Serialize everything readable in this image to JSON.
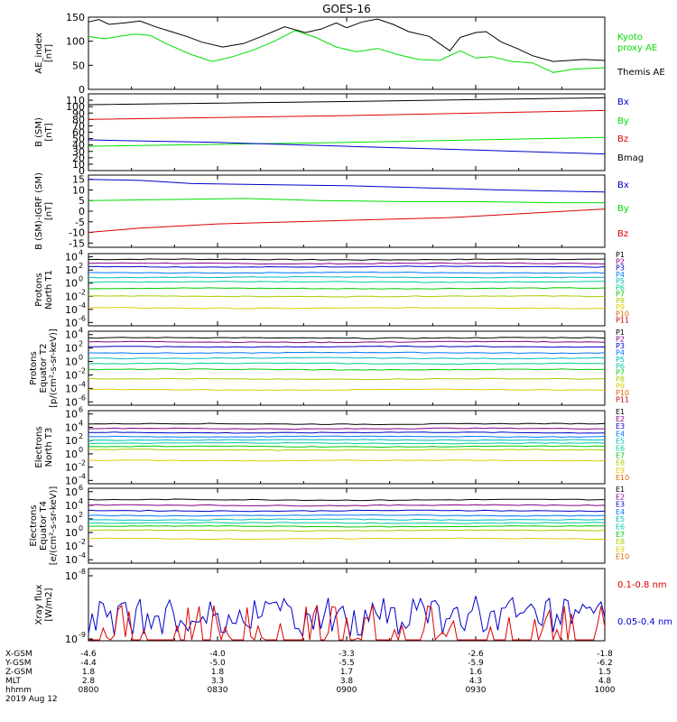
{
  "title": "GOES-16",
  "date": "2019 Aug 12",
  "colors": {
    "black": "#000000",
    "red": "#dd0000",
    "green": "#00dd00",
    "blue": "#0000cc",
    "ch": [
      "#000000",
      "#880088",
      "#0000cc",
      "#0077ff",
      "#00bbbb",
      "#00cc99",
      "#00cc00",
      "#aacc00",
      "#ddcc00",
      "#dd6600",
      "#cc0000"
    ]
  },
  "chart_data": [
    {
      "type": "line",
      "ylabel": [
        "AE_index",
        "[nT]"
      ],
      "ylim": [
        0,
        150
      ],
      "yticks": [
        "0",
        "50",
        "100",
        "150"
      ],
      "legend": [
        {
          "name": "Kyoto",
          "color_key": "green"
        },
        {
          "name": "proxy AE",
          "color_key": "green"
        },
        {
          "name": "Themis AE",
          "color_key": "black"
        }
      ],
      "series": [
        {
          "name": "Themis AE",
          "color_key": "black",
          "x": [
            0,
            0.02,
            0.04,
            0.07,
            0.1,
            0.13,
            0.16,
            0.19,
            0.22,
            0.26,
            0.3,
            0.34,
            0.38,
            0.42,
            0.45,
            0.48,
            0.5,
            0.53,
            0.56,
            0.59,
            0.62,
            0.66,
            0.7,
            0.72,
            0.75,
            0.77,
            0.8,
            0.83,
            0.86,
            0.9,
            0.93,
            0.96,
            1.0
          ],
          "y": [
            140,
            145,
            135,
            138,
            142,
            130,
            120,
            110,
            98,
            88,
            95,
            112,
            130,
            118,
            125,
            138,
            128,
            140,
            146,
            135,
            120,
            110,
            80,
            108,
            118,
            120,
            98,
            85,
            70,
            58,
            60,
            62,
            60
          ]
        },
        {
          "name": "Kyoto proxy AE",
          "color_key": "green",
          "x": [
            0,
            0.03,
            0.06,
            0.09,
            0.12,
            0.15,
            0.2,
            0.24,
            0.28,
            0.32,
            0.36,
            0.4,
            0.44,
            0.48,
            0.52,
            0.56,
            0.6,
            0.64,
            0.68,
            0.72,
            0.75,
            0.78,
            0.82,
            0.86,
            0.9,
            0.94,
            1.0
          ],
          "y": [
            110,
            105,
            110,
            115,
            112,
            95,
            72,
            58,
            68,
            82,
            100,
            122,
            108,
            88,
            78,
            85,
            72,
            62,
            60,
            80,
            65,
            68,
            58,
            55,
            35,
            42,
            45
          ]
        }
      ]
    },
    {
      "type": "line",
      "ylabel": [
        "B (SM)",
        "[nT]"
      ],
      "ylim": [
        0,
        120
      ],
      "yticks": [
        "0",
        "10",
        "20",
        "30",
        "40",
        "50",
        "60",
        "70",
        "80",
        "90",
        "100",
        "110"
      ],
      "legend": [
        {
          "name": "Bx",
          "color_key": "blue"
        },
        {
          "name": "By",
          "color_key": "green"
        },
        {
          "name": "Bz",
          "color_key": "red"
        },
        {
          "name": "Bmag",
          "color_key": "black"
        }
      ],
      "series": [
        {
          "name": "Bmag",
          "color_key": "black",
          "x": [
            0,
            0.5,
            1.0
          ],
          "y": [
            103,
            108,
            114
          ]
        },
        {
          "name": "Bz",
          "color_key": "red",
          "x": [
            0,
            0.5,
            1.0
          ],
          "y": [
            80,
            86,
            94
          ]
        },
        {
          "name": "By",
          "color_key": "green",
          "x": [
            0,
            0.5,
            1.0
          ],
          "y": [
            38,
            44,
            52
          ]
        },
        {
          "name": "Bx",
          "color_key": "blue",
          "x": [
            0,
            0.25,
            0.5,
            0.75,
            1.0
          ],
          "y": [
            48,
            44,
            38,
            32,
            26
          ]
        }
      ]
    },
    {
      "type": "line",
      "ylabel": [
        "B (SM)-IGRF (SM)",
        "[nT]"
      ],
      "ylim": [
        -17,
        17
      ],
      "yticks": [
        "-15",
        "-10",
        "-5",
        "0",
        "5",
        "10",
        "15"
      ],
      "legend": [
        {
          "name": "Bx",
          "color_key": "blue"
        },
        {
          "name": "By",
          "color_key": "green"
        },
        {
          "name": "Bz",
          "color_key": "red"
        }
      ],
      "series": [
        {
          "name": "Bx",
          "color_key": "blue",
          "x": [
            0,
            0.1,
            0.2,
            0.35,
            0.5,
            0.65,
            0.8,
            1.0
          ],
          "y": [
            15,
            14.5,
            13,
            12.5,
            12,
            11,
            10,
            9
          ]
        },
        {
          "name": "By",
          "color_key": "green",
          "x": [
            0,
            0.15,
            0.3,
            0.45,
            0.6,
            0.75,
            0.9,
            1.0
          ],
          "y": [
            5,
            5.5,
            6,
            5,
            4.5,
            4.5,
            4,
            4
          ]
        },
        {
          "name": "Bz",
          "color_key": "red",
          "x": [
            0,
            0.1,
            0.25,
            0.4,
            0.55,
            0.7,
            0.85,
            1.0
          ],
          "y": [
            -10,
            -8,
            -6,
            -5,
            -4,
            -3,
            -1,
            1
          ]
        }
      ]
    },
    {
      "type": "line",
      "log": true,
      "ylabel": [
        "Protons",
        "North T1"
      ],
      "ytick_exps": [
        "4",
        "2",
        "0",
        "-2",
        "-4",
        "-6"
      ],
      "legend_ch": [
        "P1",
        "P2",
        "P3",
        "P4",
        "P5",
        "P6",
        "P7",
        "P8",
        "P9",
        "P10",
        "P11"
      ],
      "levels": [
        3.6,
        3.0,
        2.5,
        1.6,
        0.9,
        0.2,
        -0.8,
        -2.0,
        -3.8
      ]
    },
    {
      "type": "line",
      "log": true,
      "ylabel": [
        "Protons",
        "Equator T2",
        "[p/(cm²-s-sr-keV)]"
      ],
      "ytick_exps": [
        "4",
        "2",
        "0",
        "-2",
        "-4",
        "-6"
      ],
      "legend_ch": [
        "P1",
        "P2",
        "P3",
        "P4",
        "P5",
        "P6",
        "P7",
        "P8",
        "P9",
        "P10",
        "P11"
      ],
      "levels": [
        3.5,
        2.9,
        2.2,
        1.3,
        0.5,
        -0.3,
        -1.2,
        -2.6,
        -4.2
      ]
    },
    {
      "type": "line",
      "log": true,
      "ylabel": [
        "Electrons",
        "North T3"
      ],
      "ytick_exps": [
        "6",
        "4",
        "2",
        "0",
        "-2",
        "-4"
      ],
      "legend_ch": [
        "E1",
        "E2",
        "E3",
        "E4",
        "E5",
        "E6",
        "E7",
        "E8",
        "E9",
        "E10"
      ],
      "levels": [
        4.5,
        3.8,
        3.2,
        2.6,
        2.1,
        1.6,
        1.1,
        0.6,
        -1.0
      ]
    },
    {
      "type": "line",
      "log": true,
      "ylabel": [
        "Electrons",
        "Equator T4",
        "[e/(cm²-s-sr-keV)]"
      ],
      "ytick_exps": [
        "6",
        "4",
        "2",
        "0",
        "-2",
        "-4"
      ],
      "legend_ch": [
        "E1",
        "E2",
        "E3",
        "E4",
        "E5",
        "E6",
        "E7",
        "E8",
        "E9",
        "E10"
      ],
      "levels": [
        4.8,
        4.0,
        3.2,
        2.5,
        1.9,
        1.4,
        0.9,
        0.3,
        -0.9
      ]
    },
    {
      "type": "line",
      "log": true,
      "ylabel": [
        "Xray flux",
        "[W/m2]"
      ],
      "ytick_labels": [
        "10",
        "10"
      ],
      "ytick_exps": [
        "-8",
        "-9"
      ],
      "legend": [
        {
          "name": "0.1-0.8 nm",
          "color_key": "red"
        },
        {
          "name": "0.05-0.4 nm",
          "color_key": "blue"
        }
      ]
    }
  ],
  "xaxis": {
    "rows": [
      {
        "label": "X-GSM",
        "values": [
          "-4.6",
          "-4.0",
          "-3.3",
          "-2.6",
          "-1.8"
        ]
      },
      {
        "label": "Y-GSM",
        "values": [
          "-4.4",
          "-5.0",
          "-5.5",
          "-5.9",
          "-6.2"
        ]
      },
      {
        "label": "Z-GSM",
        "values": [
          "1.8",
          "1.8",
          "1.7",
          "1.6",
          "1.5"
        ]
      },
      {
        "label": "MLT",
        "values": [
          "2.8",
          "3.3",
          "3.8",
          "4.3",
          "4.8"
        ]
      },
      {
        "label": "hhmm",
        "values": [
          "0800",
          "0830",
          "0900",
          "0930",
          "1000"
        ]
      }
    ]
  }
}
